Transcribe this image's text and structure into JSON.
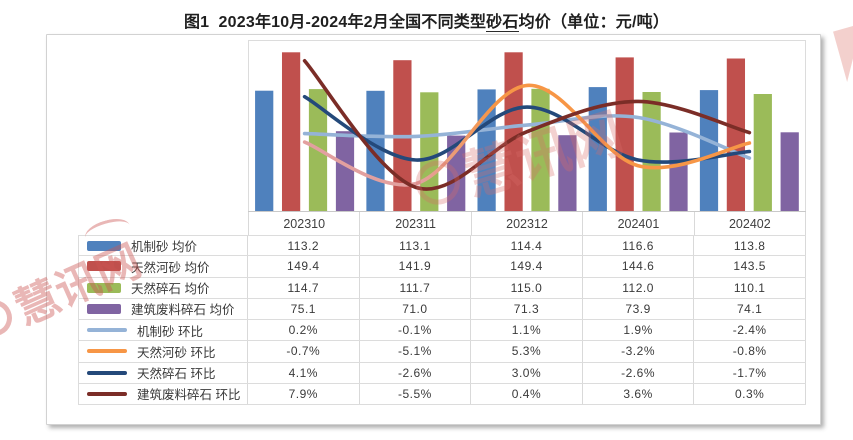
{
  "title": {
    "prefix": "图1  2023年10月-2024年2月全国不同类型",
    "underlined": "砂石",
    "suffix": "均价（单位：元/吨）"
  },
  "watermarks": {
    "brand": "慧讯网"
  },
  "chart_data": {
    "type": "combo: grouped bar (均价) + smooth line (环比)",
    "categories": [
      "202310",
      "202311",
      "202312",
      "202401",
      "202402"
    ],
    "bar_series": [
      {
        "name": "机制砂 均价",
        "color": "#4F81BD",
        "values": [
          113.2,
          113.1,
          114.4,
          116.6,
          113.8
        ]
      },
      {
        "name": "天然河砂 均价",
        "color": "#C0504D",
        "values": [
          149.4,
          141.9,
          149.4,
          144.6,
          143.5
        ]
      },
      {
        "name": "天然碎石 均价",
        "color": "#9BBB59",
        "values": [
          114.7,
          111.7,
          115.0,
          112.0,
          110.1
        ]
      },
      {
        "name": "建筑废料碎石 均价",
        "color": "#8064A2",
        "values": [
          75.1,
          71.0,
          71.3,
          73.9,
          74.1
        ]
      }
    ],
    "line_series": [
      {
        "name": "机制砂 环比",
        "color": "#95B3D7",
        "values": [
          0.2,
          -0.1,
          1.1,
          1.9,
          -2.4
        ]
      },
      {
        "name": "天然碎石 环比",
        "color": "#24497A",
        "values": [
          4.1,
          -2.6,
          3.0,
          -2.6,
          -1.7
        ]
      },
      {
        "name": "天然河砂 环比",
        "color": "#F79646",
        "color_start": "#E2A09F",
        "values": [
          -0.7,
          -5.1,
          5.3,
          -3.2,
          -0.8
        ]
      },
      {
        "name": "建筑废料碎石 环比",
        "color": "#7B2D27",
        "values": [
          7.9,
          -5.5,
          0.4,
          3.6,
          0.3
        ]
      }
    ],
    "table_legend_order": [
      "机制砂 均价",
      "天然河砂 均价",
      "天然碎石 均价",
      "建筑废料碎石 均价",
      "机制砂 环比",
      "天然河砂 环比",
      "天然碎石 环比",
      "建筑废料碎石 环比"
    ],
    "bar_value_format": "0.0",
    "line_value_format": "0.0%",
    "primary_axis": {
      "min": 0,
      "max": 160,
      "shown": false
    },
    "secondary_axis": {
      "min": -8,
      "max": 10,
      "shown": false
    },
    "gridlines": false,
    "smooth_lines": true,
    "legend_position": "table-left-column"
  }
}
